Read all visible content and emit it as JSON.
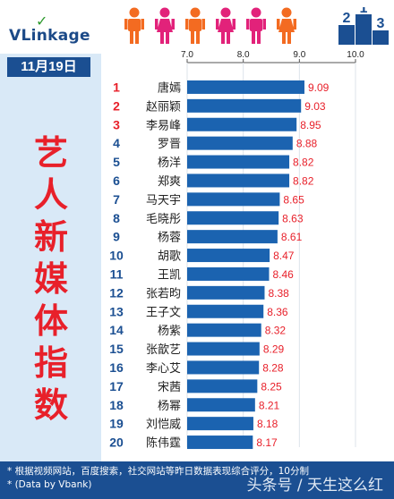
{
  "brand": {
    "logo_text": "VLinkage"
  },
  "badge": {
    "digits": [
      "2",
      "1",
      "3"
    ],
    "color": "#1b4f92"
  },
  "date_label": "11月19日",
  "vertical_title": [
    "艺",
    "人",
    "新",
    "媒",
    "体",
    "指",
    "数"
  ],
  "people_colors": [
    "#f36b21",
    "#e2227a",
    "#f36b21",
    "#e2227a",
    "#e2227a",
    "#f36b21"
  ],
  "colors": {
    "bar": "#1b63b0",
    "value": "#e8202a",
    "rank_top": "#e8202a",
    "rank": "#1b4f92",
    "panel": "#d9e9f7",
    "footer": "#1b4f92"
  },
  "footer": {
    "note1": "* 根据视频网站，百度搜索，社交网站等昨日数据表现综合评分，10分制",
    "note2": "* (Data by Vbank)",
    "watermark": "头条号 / 天生这么红"
  },
  "chart_data": {
    "type": "bar",
    "orientation": "horizontal",
    "title": "",
    "xlabel": "",
    "ylabel": "",
    "xlim": [
      7.0,
      10.0
    ],
    "xticks": [
      "7.0",
      "8.0",
      "9.0",
      "10.0"
    ],
    "grid": true,
    "ranks": [
      "1",
      "2",
      "3",
      "4",
      "5",
      "6",
      "7",
      "8",
      "9",
      "10",
      "11",
      "12",
      "13",
      "14",
      "15",
      "16",
      "17",
      "18",
      "19",
      "20"
    ],
    "categories": [
      "唐嫣",
      "赵丽颖",
      "李易峰",
      "罗晋",
      "杨洋",
      "郑爽",
      "马天宇",
      "毛晓彤",
      "杨蓉",
      "胡歌",
      "王凯",
      "张若昀",
      "王子文",
      "杨紫",
      "张歆艺",
      "李心艾",
      "宋茜",
      "杨幂",
      "刘恺威",
      "陈伟霆"
    ],
    "values": [
      9.09,
      9.03,
      8.95,
      8.88,
      8.82,
      8.82,
      8.65,
      8.63,
      8.61,
      8.47,
      8.46,
      8.38,
      8.36,
      8.32,
      8.29,
      8.28,
      8.25,
      8.21,
      8.18,
      8.17
    ],
    "value_labels": [
      "9.09",
      "9.03",
      "8.95",
      "8.88",
      "8.82",
      "8.82",
      "8.65",
      "8.63",
      "8.61",
      "8.47",
      "8.46",
      "8.38",
      "8.36",
      "8.32",
      "8.29",
      "8.28",
      "8.25",
      "8.21",
      "8.18",
      "8.17"
    ]
  }
}
